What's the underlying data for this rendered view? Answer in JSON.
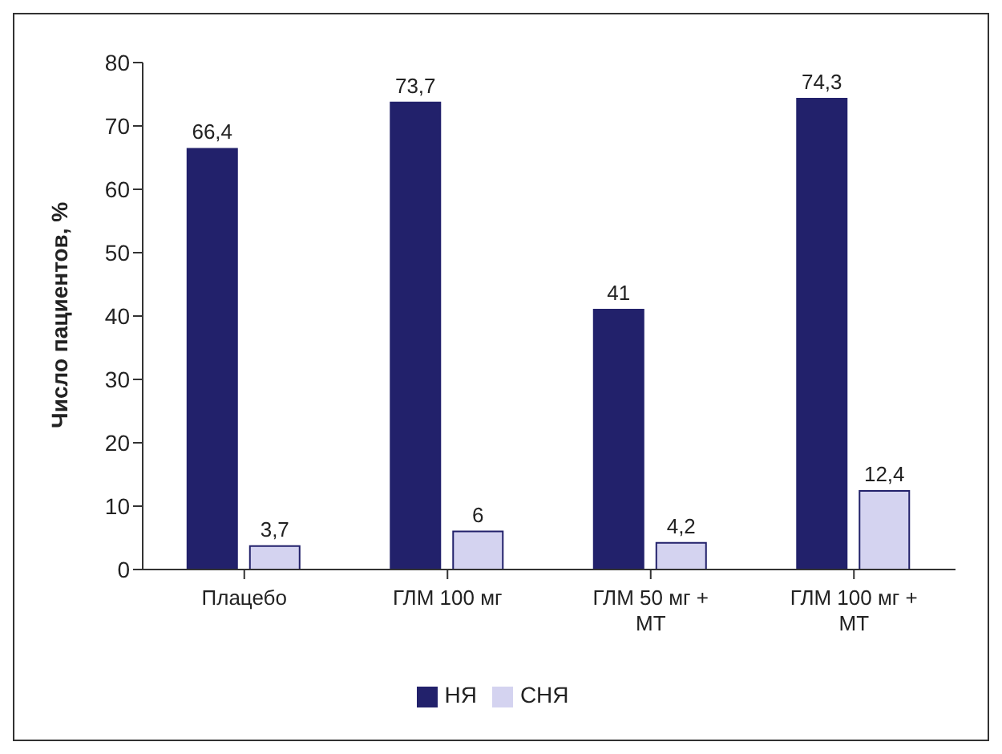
{
  "chart_data": {
    "type": "bar",
    "ylabel": "Число пациентов, %",
    "categories": [
      "Плацебо",
      "ГЛМ 100 мг",
      "ГЛМ 50 мг + МТ",
      "ГЛМ 100 мг + МТ"
    ],
    "series": [
      {
        "name": "НЯ",
        "color": "#22216b",
        "values": [
          66.4,
          73.7,
          41,
          74.3
        ],
        "value_labels": [
          "66,4",
          "73,7",
          "41",
          "74,3"
        ]
      },
      {
        "name": "СНЯ",
        "color": "#d4d3f0",
        "values": [
          3.7,
          6,
          4.2,
          12.4
        ],
        "value_labels": [
          "3,7",
          "6",
          "4,2",
          "12,4"
        ]
      }
    ],
    "ylim": [
      0,
      80
    ],
    "yticks": [
      0,
      10,
      20,
      30,
      40,
      50,
      60,
      70,
      80
    ],
    "grid": false,
    "legend": "bottom"
  }
}
